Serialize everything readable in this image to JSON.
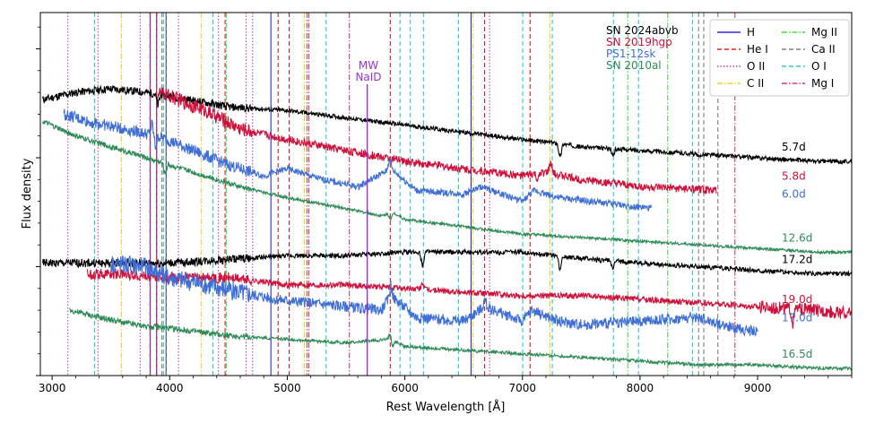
{
  "chart_data": {
    "type": "line",
    "title": "",
    "xlabel": "Rest Wavelength [Å]",
    "ylabel": "Flux density",
    "xlim": [
      2900,
      9800
    ],
    "ylim": [
      0,
      100
    ],
    "x_ticks": [
      3000,
      4000,
      5000,
      6000,
      7000,
      8000,
      9000
    ],
    "y_ticks_shown": false,
    "grid": false,
    "supernovae": [
      {
        "name": "SN 2024abvb",
        "color": "#000000"
      },
      {
        "name": "SN 2019hgp",
        "color": "#d0103a"
      },
      {
        "name": "PS1-12sk",
        "color": "#3f6fd6"
      },
      {
        "name": "SN 2010al",
        "color": "#2e8b57"
      }
    ],
    "line_ids": [
      {
        "name": "H",
        "color": "#2a2ad8",
        "style": "solid"
      },
      {
        "name": "He I",
        "color": "#e02020",
        "style": "dashed"
      },
      {
        "name": "O II",
        "color": "#c040c0",
        "style": "dotted"
      },
      {
        "name": "C II",
        "color": "#f0d020",
        "style": "dashdot"
      },
      {
        "name": "Mg II",
        "color": "#40e040",
        "style": "dashdot"
      },
      {
        "name": "Ca II",
        "color": "#808080",
        "style": "dashed"
      },
      {
        "name": "O I",
        "color": "#30c8c8",
        "style": "dashed"
      },
      {
        "name": "Mg I",
        "color": "#d04060",
        "style": "dashdot"
      }
    ],
    "mw_naid": {
      "label_line1": "MW",
      "label_line2": "NaID",
      "wavelength": 5680,
      "color": "#9b30d9"
    },
    "series": [
      {
        "name": "SN 2024abvb",
        "phase": "5.7d",
        "color": "#000000",
        "x_start": 2920,
        "x_end": 9800,
        "points": [
          [
            2920,
            76
          ],
          [
            3200,
            78
          ],
          [
            3500,
            79
          ],
          [
            3800,
            78
          ],
          [
            4000,
            77
          ],
          [
            4500,
            74
          ],
          [
            5000,
            73
          ],
          [
            5500,
            71
          ],
          [
            6000,
            69
          ],
          [
            6500,
            67
          ],
          [
            7000,
            65
          ],
          [
            7300,
            64
          ],
          [
            7500,
            63
          ],
          [
            8000,
            62
          ],
          [
            8500,
            61
          ],
          [
            9000,
            60
          ],
          [
            9500,
            59
          ],
          [
            9800,
            59
          ]
        ],
        "features": [
          [
            3900,
            -3
          ],
          [
            7320,
            -4
          ],
          [
            7770,
            -2
          ],
          [
            8500,
            -1
          ]
        ],
        "noise": 1.2
      },
      {
        "name": "SN 2019hgp",
        "phase": "5.8d",
        "color": "#d0103a",
        "x_start": 3900,
        "x_end": 8650,
        "points": [
          [
            3900,
            78
          ],
          [
            4000,
            77
          ],
          [
            4300,
            73
          ],
          [
            4600,
            68
          ],
          [
            5000,
            65
          ],
          [
            5500,
            62
          ],
          [
            6000,
            59
          ],
          [
            6500,
            57
          ],
          [
            7000,
            55
          ],
          [
            7200,
            56
          ],
          [
            7500,
            54
          ],
          [
            8000,
            52
          ],
          [
            8650,
            51
          ]
        ],
        "features": [
          [
            7130,
            -2
          ],
          [
            7240,
            3
          ]
        ],
        "noise": 2.2
      },
      {
        "name": "PS1-12sk",
        "phase": "6.0d",
        "color": "#3f6fd6",
        "x_start": 3100,
        "x_end": 8100,
        "points": [
          [
            3100,
            72
          ],
          [
            3300,
            70
          ],
          [
            3600,
            68
          ],
          [
            3900,
            66
          ],
          [
            4200,
            62
          ],
          [
            4500,
            58
          ],
          [
            4800,
            55
          ],
          [
            5000,
            57
          ],
          [
            5300,
            54
          ],
          [
            5600,
            52
          ],
          [
            5880,
            57
          ],
          [
            6100,
            51
          ],
          [
            6500,
            50
          ],
          [
            6650,
            52
          ],
          [
            7000,
            48
          ],
          [
            7100,
            51
          ],
          [
            7300,
            49
          ],
          [
            8100,
            46
          ]
        ],
        "features": [
          [
            3850,
            3
          ],
          [
            3880,
            -3
          ],
          [
            5870,
            3
          ]
        ],
        "noise": 1.8
      },
      {
        "name": "SN 2010al",
        "phase": "12.6d",
        "color": "#2e8b57",
        "x_start": 2920,
        "x_end": 9800,
        "points": [
          [
            2920,
            70
          ],
          [
            3200,
            66
          ],
          [
            3500,
            63
          ],
          [
            3800,
            60
          ],
          [
            4200,
            56
          ],
          [
            4600,
            52
          ],
          [
            5000,
            49
          ],
          [
            5500,
            46
          ],
          [
            5800,
            44
          ],
          [
            5900,
            45
          ],
          [
            6000,
            43
          ],
          [
            6500,
            41
          ],
          [
            7000,
            39
          ],
          [
            7500,
            38
          ],
          [
            8000,
            37
          ],
          [
            8500,
            36
          ],
          [
            9000,
            35
          ],
          [
            9500,
            34
          ],
          [
            9800,
            34
          ]
        ],
        "features": [
          [
            3960,
            -3
          ],
          [
            5880,
            -2
          ]
        ],
        "noise": 0.8
      },
      {
        "name": "SN 2024abvb",
        "phase": "17.2d",
        "color": "#000000",
        "x_start": 2920,
        "x_end": 9800,
        "points": [
          [
            2920,
            31
          ],
          [
            3200,
            31
          ],
          [
            3500,
            31
          ],
          [
            4000,
            31
          ],
          [
            4500,
            32
          ],
          [
            5000,
            33
          ],
          [
            5500,
            33
          ],
          [
            6000,
            34
          ],
          [
            6500,
            34
          ],
          [
            7000,
            34
          ],
          [
            7300,
            33
          ],
          [
            7600,
            32
          ],
          [
            8000,
            31
          ],
          [
            8500,
            30
          ],
          [
            9000,
            29
          ],
          [
            9500,
            28
          ],
          [
            9800,
            28
          ]
        ],
        "features": [
          [
            6150,
            -4
          ],
          [
            7320,
            -4
          ],
          [
            7770,
            -2
          ]
        ],
        "noise": 1.3
      },
      {
        "name": "SN 2019hgp",
        "phase": "19.0d",
        "color": "#d0103a",
        "x_start": 3300,
        "x_end": 9800,
        "points": [
          [
            3300,
            28
          ],
          [
            3600,
            28
          ],
          [
            4000,
            27
          ],
          [
            4500,
            27
          ],
          [
            5000,
            25
          ],
          [
            5500,
            25
          ],
          [
            6000,
            24
          ],
          [
            6500,
            23
          ],
          [
            7000,
            22
          ],
          [
            7500,
            22
          ],
          [
            8000,
            21
          ],
          [
            8500,
            20
          ],
          [
            9000,
            19
          ],
          [
            9500,
            18
          ],
          [
            9800,
            17
          ]
        ],
        "features": [
          [
            6150,
            2
          ],
          [
            9300,
            -4
          ]
        ],
        "noise": 1.6
      },
      {
        "name": "PS1-12sk",
        "phase": "17.0d",
        "color": "#3f6fd6",
        "x_start": 3500,
        "x_end": 9000,
        "points": [
          [
            3500,
            31
          ],
          [
            3800,
            30
          ],
          [
            4000,
            27
          ],
          [
            4300,
            25
          ],
          [
            4600,
            23
          ],
          [
            4900,
            21
          ],
          [
            5200,
            20
          ],
          [
            5500,
            19
          ],
          [
            5800,
            18
          ],
          [
            5880,
            22
          ],
          [
            6100,
            16
          ],
          [
            6500,
            15
          ],
          [
            6680,
            19
          ],
          [
            7000,
            15
          ],
          [
            7080,
            18
          ],
          [
            7300,
            15
          ],
          [
            7500,
            14
          ],
          [
            8000,
            15
          ],
          [
            8500,
            16
          ],
          [
            8800,
            13
          ],
          [
            9000,
            12
          ]
        ],
        "features": [
          [
            5880,
            3
          ],
          [
            6680,
            2
          ]
        ],
        "noise": 3.0
      },
      {
        "name": "SN 2010al",
        "phase": "16.5d",
        "color": "#2e8b57",
        "x_start": 3150,
        "x_end": 9800,
        "points": [
          [
            3150,
            18
          ],
          [
            3400,
            16
          ],
          [
            3700,
            14
          ],
          [
            4000,
            13
          ],
          [
            4500,
            11
          ],
          [
            5000,
            10
          ],
          [
            5500,
            9
          ],
          [
            5880,
            10
          ],
          [
            6000,
            8
          ],
          [
            6500,
            7
          ],
          [
            7000,
            6
          ],
          [
            7500,
            5
          ],
          [
            8000,
            4
          ],
          [
            8500,
            3
          ],
          [
            9000,
            3
          ],
          [
            9500,
            2
          ],
          [
            9800,
            2
          ]
        ],
        "features": [
          [
            5880,
            3
          ],
          [
            5890,
            -3
          ]
        ],
        "noise": 0.9
      }
    ],
    "line_markers": [
      {
        "id": "H",
        "wavelengths": [
          3835,
          3889,
          3970,
          4861,
          6563
        ]
      },
      {
        "id": "He I",
        "wavelengths": [
          3889,
          4471,
          4922,
          5016,
          5876,
          6678,
          7065
        ]
      },
      {
        "id": "O II",
        "wavelengths": [
          3134,
          3390,
          3749,
          4075,
          4415,
          4650,
          4705,
          6721
        ]
      },
      {
        "id": "C II",
        "wavelengths": [
          3589,
          4267,
          5145,
          6580,
          7234
        ]
      },
      {
        "id": "Mg II",
        "wavelengths": [
          4481,
          7896,
          8235
        ]
      },
      {
        "id": "Ca II",
        "wavelengths": [
          3934,
          3968,
          8498,
          8542,
          8662
        ]
      },
      {
        "id": "O I",
        "wavelengths": [
          3362,
          3947,
          4368,
          5330,
          5959,
          6046,
          6158,
          6456,
          7002,
          7254,
          7774,
          7987,
          8446
        ]
      },
      {
        "id": "Mg I",
        "wavelengths": [
          3832,
          5167,
          5183,
          5528,
          8807
        ]
      }
    ]
  }
}
